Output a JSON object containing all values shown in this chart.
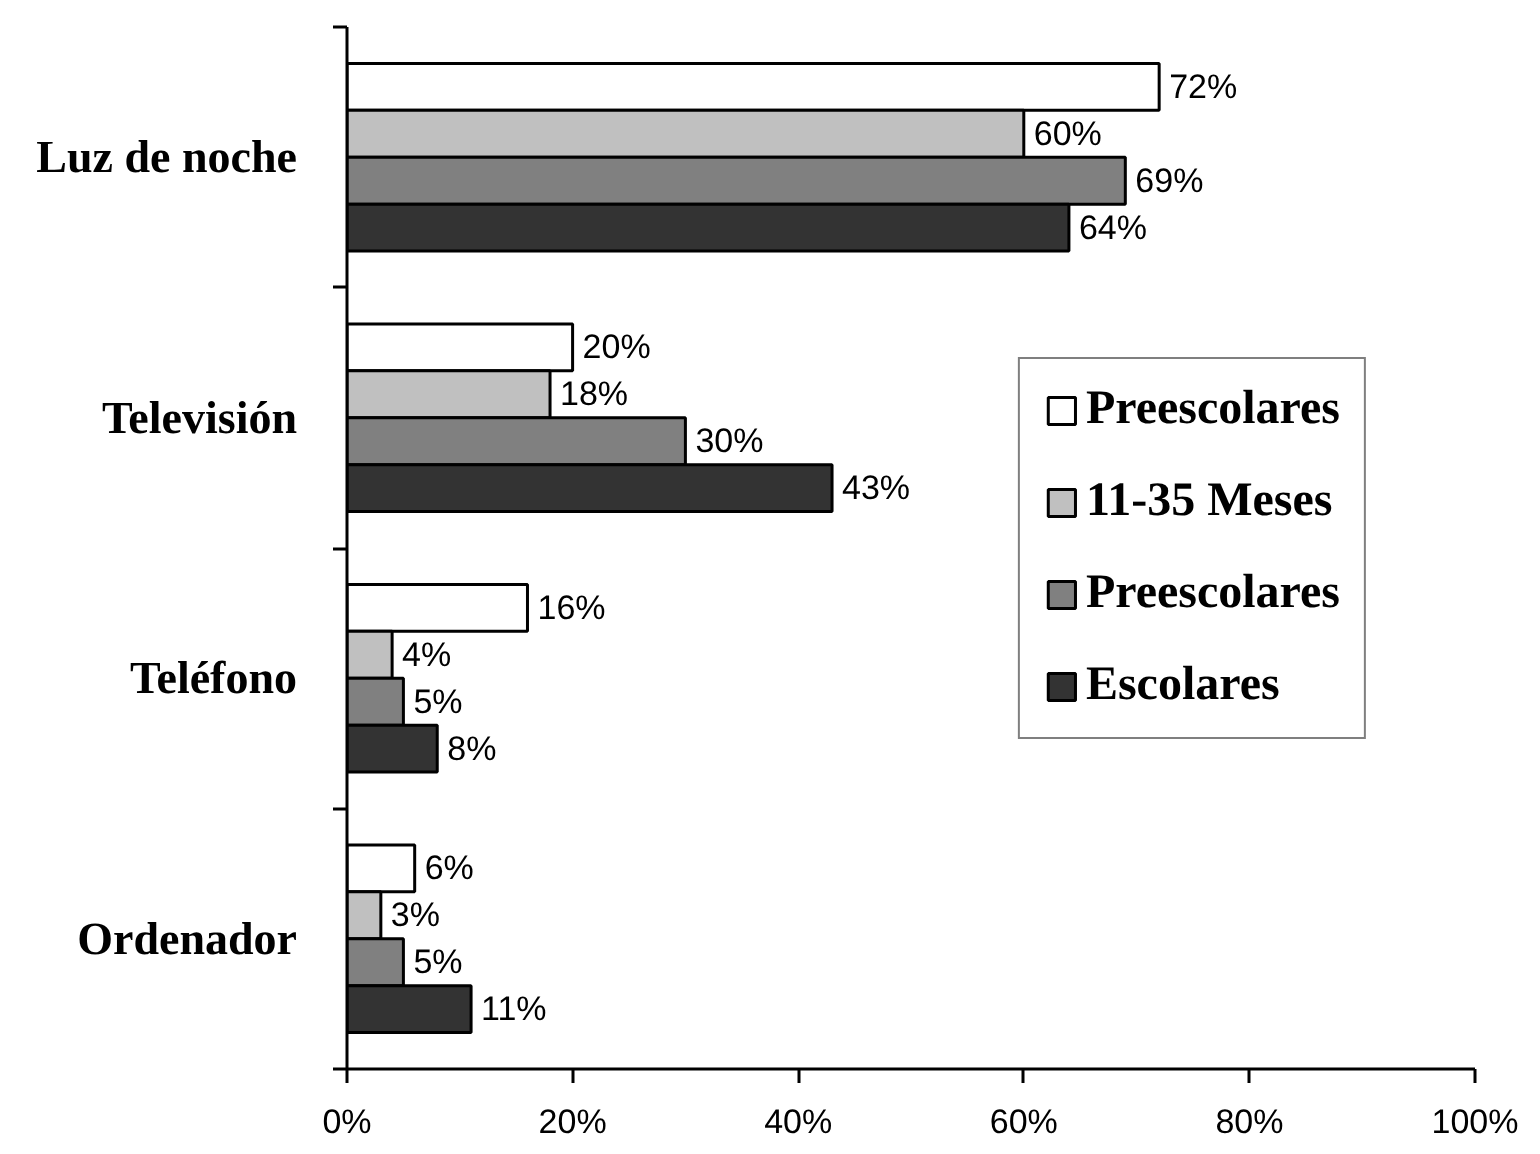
{
  "chart_data": {
    "type": "bar",
    "orientation": "horizontal",
    "categories": [
      "Luz de noche",
      "Televisión",
      "Teléfono",
      "Ordenador"
    ],
    "series": [
      {
        "name": "Preescolares",
        "color": "#ffffff",
        "values": [
          72,
          20,
          16,
          6
        ],
        "value_labels": [
          "72%",
          "20%",
          "16%",
          "6%"
        ]
      },
      {
        "name": "11-35 Meses",
        "color": "#c0c0c0",
        "values": [
          60,
          18,
          4,
          3
        ],
        "value_labels": [
          "60%",
          "18%",
          "4%",
          "3%"
        ]
      },
      {
        "name": "Preescolares",
        "color": "#808080",
        "values": [
          69,
          30,
          5,
          5
        ],
        "value_labels": [
          "69%",
          "30%",
          "5%",
          "5%"
        ]
      },
      {
        "name": "Escolares",
        "color": "#333333",
        "values": [
          64,
          43,
          8,
          11
        ],
        "value_labels": [
          "64%",
          "43%",
          "8%",
          "11%"
        ]
      }
    ],
    "xlim": [
      0,
      100
    ],
    "xticks": [
      {
        "value": 0,
        "label": "0%"
      },
      {
        "value": 20,
        "label": "20%"
      },
      {
        "value": 40,
        "label": "40%"
      },
      {
        "value": 60,
        "label": "60%"
      },
      {
        "value": 80,
        "label": "80%"
      },
      {
        "value": 100,
        "label": "100%"
      }
    ],
    "grid": false,
    "legend": "right"
  }
}
